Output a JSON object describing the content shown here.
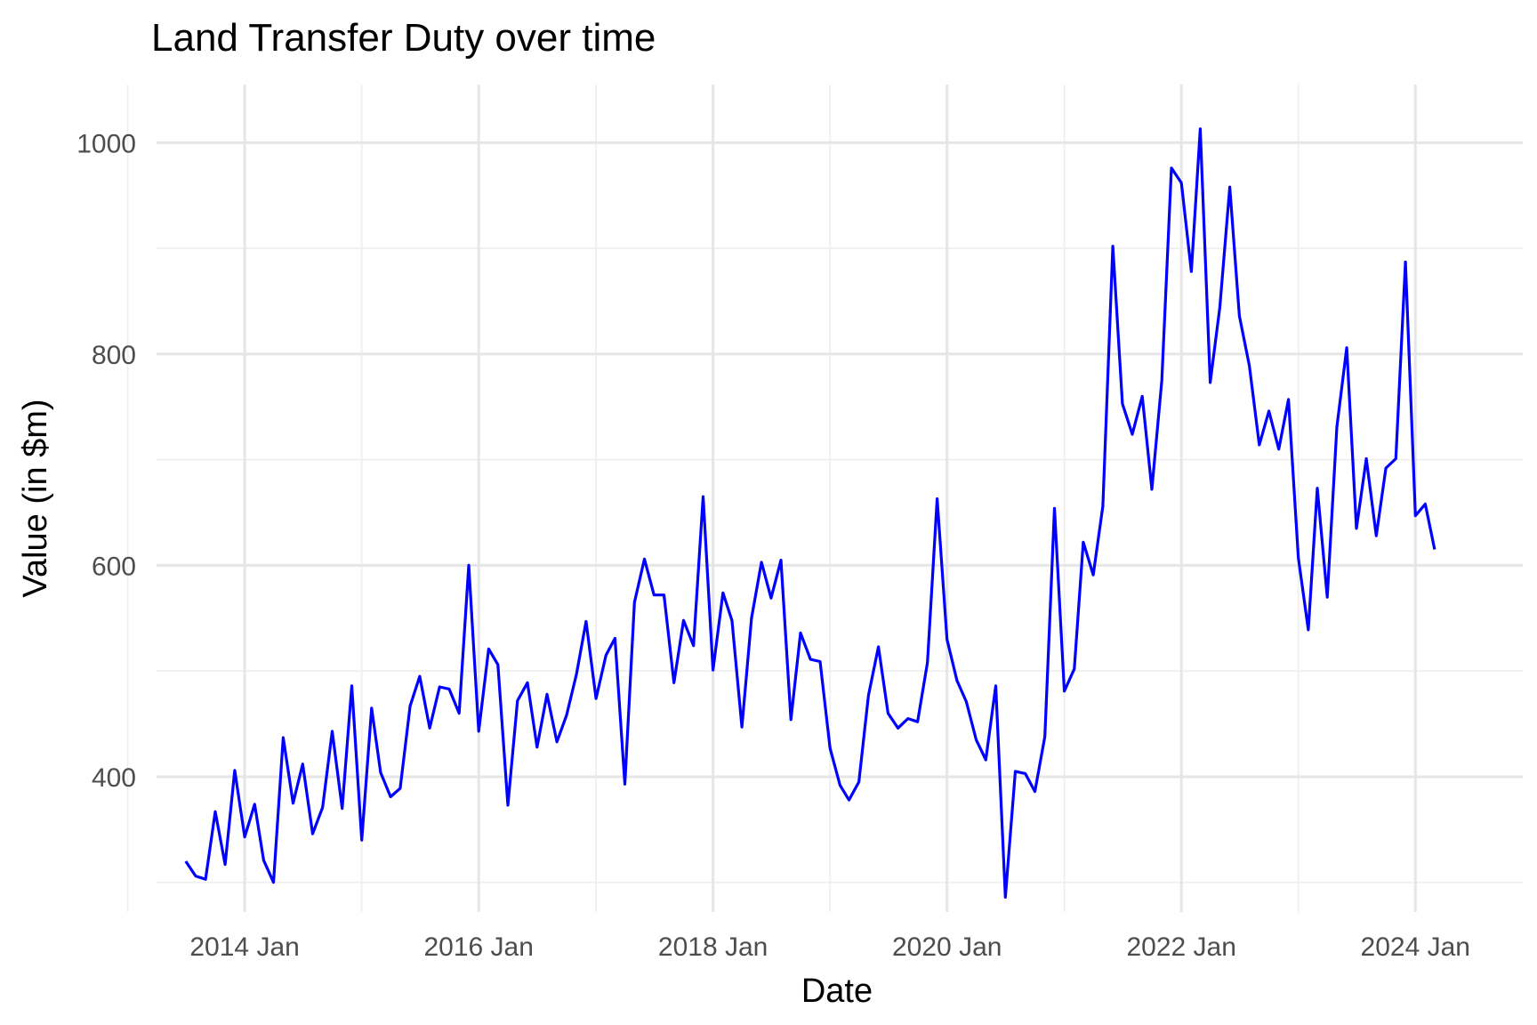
{
  "chart_data": {
    "type": "line",
    "title": "Land Transfer Duty over time",
    "xlabel": "Date",
    "ylabel": "Value (in $m)",
    "ylim": [
      272,
      1055
    ],
    "xlim": [
      "2013-04-01",
      "2024-12-01"
    ],
    "y_major_ticks": [
      400,
      600,
      800,
      1000
    ],
    "y_minor_ticks": [
      300,
      500,
      700,
      900
    ],
    "x_major_ticks": [
      {
        "date": "2014-01-01",
        "label": "2014 Jan"
      },
      {
        "date": "2016-01-01",
        "label": "2016 Jan"
      },
      {
        "date": "2018-01-01",
        "label": "2018 Jan"
      },
      {
        "date": "2020-01-01",
        "label": "2020 Jan"
      },
      {
        "date": "2022-01-01",
        "label": "2022 Jan"
      },
      {
        "date": "2024-01-01",
        "label": "2024 Jan"
      }
    ],
    "x_minor_ticks": [
      "2013-01-01",
      "2015-01-01",
      "2017-01-01",
      "2019-01-01",
      "2021-01-01",
      "2023-01-01"
    ],
    "grid": true,
    "legend": "none",
    "line_color": "#0000ff",
    "series": [
      {
        "x": [
          "2013-07-01",
          "2013-08-01",
          "2013-09-01",
          "2013-10-01",
          "2013-11-01",
          "2013-12-01",
          "2014-01-01",
          "2014-02-01",
          "2014-03-01",
          "2014-04-01",
          "2014-05-01",
          "2014-06-01",
          "2014-07-01",
          "2014-08-01",
          "2014-09-01",
          "2014-10-01",
          "2014-11-01",
          "2014-12-01",
          "2015-01-01",
          "2015-02-01",
          "2015-03-01",
          "2015-04-01",
          "2015-05-01",
          "2015-06-01",
          "2015-07-01",
          "2015-08-01",
          "2015-09-01",
          "2015-10-01",
          "2015-11-01",
          "2015-12-01",
          "2016-01-01",
          "2016-02-01",
          "2016-03-01",
          "2016-04-01",
          "2016-05-01",
          "2016-06-01",
          "2016-07-01",
          "2016-08-01",
          "2016-09-01",
          "2016-10-01",
          "2016-11-01",
          "2016-12-01",
          "2017-01-01",
          "2017-02-01",
          "2017-03-01",
          "2017-04-01",
          "2017-05-01",
          "2017-06-01",
          "2017-07-01",
          "2017-08-01",
          "2017-09-01",
          "2017-10-01",
          "2017-11-01",
          "2017-12-01",
          "2018-01-01",
          "2018-02-01",
          "2018-03-01",
          "2018-04-01",
          "2018-05-01",
          "2018-06-01",
          "2018-07-01",
          "2018-08-01",
          "2018-09-01",
          "2018-10-01",
          "2018-11-01",
          "2018-12-01",
          "2019-01-01",
          "2019-02-01",
          "2019-03-01",
          "2019-04-01",
          "2019-05-01",
          "2019-06-01",
          "2019-07-01",
          "2019-08-01",
          "2019-09-01",
          "2019-10-01",
          "2019-11-01",
          "2019-12-01",
          "2020-01-01",
          "2020-02-01",
          "2020-03-01",
          "2020-04-01",
          "2020-05-01",
          "2020-06-01",
          "2020-07-01",
          "2020-08-01",
          "2020-09-01",
          "2020-10-01",
          "2020-11-01",
          "2020-12-01",
          "2021-01-01",
          "2021-02-01",
          "2021-03-01",
          "2021-04-01",
          "2021-05-01",
          "2021-06-01",
          "2021-07-01",
          "2021-08-01",
          "2021-09-01",
          "2021-10-01",
          "2021-11-01",
          "2021-12-01",
          "2022-01-01",
          "2022-02-01",
          "2022-03-01",
          "2022-04-01",
          "2022-05-01",
          "2022-06-01",
          "2022-07-01",
          "2022-08-01",
          "2022-09-01",
          "2022-10-01",
          "2022-11-01",
          "2022-12-01",
          "2023-01-01",
          "2023-02-01",
          "2023-03-01",
          "2023-04-01",
          "2023-05-01",
          "2023-06-01",
          "2023-07-01",
          "2023-08-01",
          "2023-09-01",
          "2023-10-01",
          "2023-11-01",
          "2023-12-01",
          "2024-01-01",
          "2024-02-01",
          "2024-03-01"
        ],
        "values": [
          320,
          306,
          303,
          367,
          317,
          406,
          343,
          374,
          321,
          300,
          437,
          375,
          412,
          346,
          371,
          443,
          370,
          486,
          340,
          465,
          404,
          381,
          389,
          467,
          495,
          446,
          485,
          483,
          460,
          600,
          443,
          521,
          506,
          373,
          472,
          489,
          428,
          478,
          433,
          458,
          497,
          547,
          474,
          515,
          531,
          393,
          565,
          606,
          572,
          572,
          489,
          548,
          524,
          665,
          501,
          574,
          548,
          447,
          550,
          603,
          569,
          605,
          454,
          536,
          511,
          509,
          427,
          392,
          378,
          395,
          477,
          523,
          460,
          446,
          455,
          452,
          508,
          663,
          530,
          491,
          471,
          435,
          416,
          486,
          286,
          405,
          403,
          386,
          438,
          654,
          481,
          502,
          622,
          591,
          656,
          902,
          753,
          724,
          760,
          672,
          775,
          976,
          962,
          878,
          1013,
          773,
          844,
          958,
          836,
          789,
          714,
          746,
          710,
          757,
          607,
          539,
          673,
          570,
          731,
          806,
          635,
          701,
          628,
          692,
          701,
          887,
          647,
          658,
          615
        ]
      }
    ]
  }
}
